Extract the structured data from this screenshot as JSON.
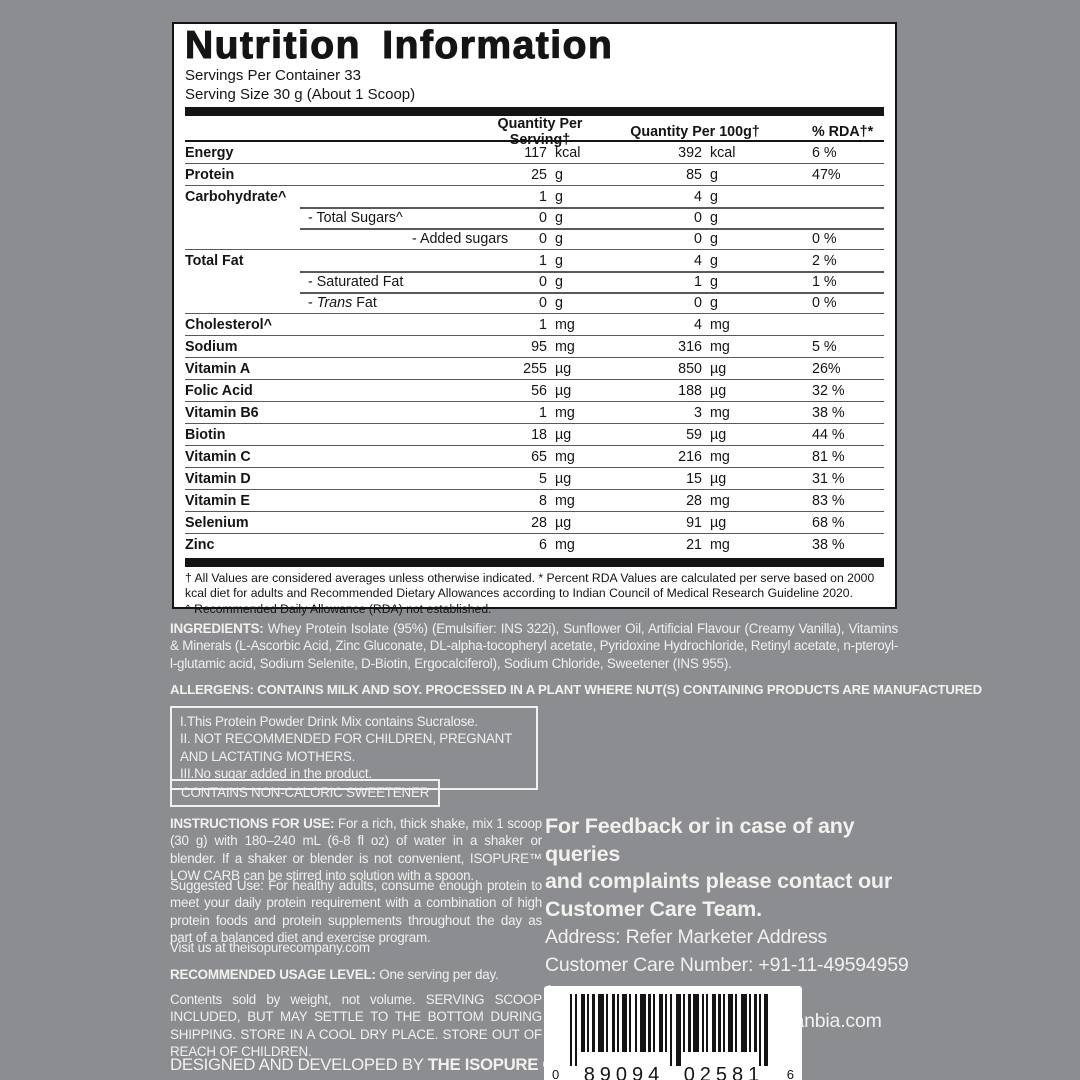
{
  "panel": {
    "title": "Nutrition Information",
    "servings_line1": "Servings Per Container 33",
    "servings_line2": "Serving Size 30 g (About 1 Scoop)",
    "columns": {
      "serving": "Quantity Per Serving†",
      "per100": "Quantity Per 100g†",
      "rda": "% RDA†*"
    },
    "rows": [
      {
        "label": "Energy",
        "bold": true,
        "indent": 0,
        "sep": "none",
        "sn": "117",
        "su": "kcal",
        "hn": "392",
        "hu": "kcal",
        "rda": "6 %"
      },
      {
        "label": "Protein",
        "bold": true,
        "indent": 0,
        "sep": "full",
        "sn": "25",
        "su": "g",
        "hn": "85",
        "hu": "g",
        "rda": "47%"
      },
      {
        "label": "Carbohydrate^",
        "bold": true,
        "indent": 0,
        "sep": "full",
        "sn": "1",
        "su": "g",
        "hn": "4",
        "hu": "g",
        "rda": ""
      },
      {
        "label": "- Total Sugars^",
        "bold": false,
        "indent": 1,
        "sep": "partial",
        "sn": "0",
        "su": "g",
        "hn": "0",
        "hu": "g",
        "rda": ""
      },
      {
        "label": "- Added sugars",
        "bold": false,
        "indent": 2,
        "sep": "partial",
        "sn": "0",
        "su": "g",
        "hn": "0",
        "hu": "g",
        "rda": "0 %"
      },
      {
        "label": "Total Fat",
        "bold": true,
        "indent": 0,
        "sep": "full",
        "sn": "1",
        "su": "g",
        "hn": "4",
        "hu": "g",
        "rda": "2 %"
      },
      {
        "label": "- Saturated Fat",
        "bold": false,
        "indent": 1,
        "sep": "partial",
        "sn": "0",
        "su": "g",
        "hn": "1",
        "hu": "g",
        "rda": "1 %"
      },
      {
        "label": "- Trans Fat",
        "italic": "Trans",
        "bold": false,
        "indent": 1,
        "sep": "partial",
        "sn": "0",
        "su": "g",
        "hn": "0",
        "hu": "g",
        "rda": "0 %"
      },
      {
        "label": "Cholesterol^",
        "bold": true,
        "indent": 0,
        "sep": "full",
        "sn": "1",
        "su": "mg",
        "hn": "4",
        "hu": "mg",
        "rda": ""
      },
      {
        "label": "Sodium",
        "bold": true,
        "indent": 0,
        "sep": "full",
        "sn": "95",
        "su": "mg",
        "hn": "316",
        "hu": "mg",
        "rda": "5 %"
      },
      {
        "label": "Vitamin A",
        "bold": true,
        "indent": 0,
        "sep": "full",
        "sn": "255",
        "su": "µg",
        "hn": "850",
        "hu": "µg",
        "rda": "26%"
      },
      {
        "label": "Folic Acid",
        "bold": true,
        "indent": 0,
        "sep": "full",
        "sn": "56",
        "su": "µg",
        "hn": "188",
        "hu": "µg",
        "rda": "32 %"
      },
      {
        "label": "Vitamin B6",
        "bold": true,
        "indent": 0,
        "sep": "full",
        "sn": "1",
        "su": "mg",
        "hn": "3",
        "hu": "mg",
        "rda": "38 %"
      },
      {
        "label": "Biotin",
        "bold": true,
        "indent": 0,
        "sep": "full",
        "sn": "18",
        "su": "µg",
        "hn": "59",
        "hu": "µg",
        "rda": "44 %"
      },
      {
        "label": "Vitamin C",
        "bold": true,
        "indent": 0,
        "sep": "full",
        "sn": "65",
        "su": "mg",
        "hn": "216",
        "hu": "mg",
        "rda": "81 %"
      },
      {
        "label": "Vitamin D",
        "bold": true,
        "indent": 0,
        "sep": "full",
        "sn": "5",
        "su": "µg",
        "hn": "15",
        "hu": "µg",
        "rda": "31 %"
      },
      {
        "label": "Vitamin E",
        "bold": true,
        "indent": 0,
        "sep": "full",
        "sn": "8",
        "su": "mg",
        "hn": "28",
        "hu": "mg",
        "rda": "83 %"
      },
      {
        "label": "Selenium",
        "bold": true,
        "indent": 0,
        "sep": "full",
        "sn": "28",
        "su": "µg",
        "hn": "91",
        "hu": "µg",
        "rda": "68 %"
      },
      {
        "label": "Zinc",
        "bold": true,
        "indent": 0,
        "sep": "full",
        "sn": "6",
        "su": "mg",
        "hn": "21",
        "hu": "mg",
        "rda": "38 %"
      }
    ],
    "footnote1": "† All Values are considered averages unless otherwise indicated.  * Percent RDA Values are calculated per serve based on 2000 kcal diet for adults and Recommended Dietary Allowances according to Indian Council of Medical Research Guideline 2020.",
    "footnote2": "^ Recommended Daily Allowance (RDA) not established."
  },
  "ingredients": {
    "label": "INGREDIENTS:",
    "text": " Whey Protein Isolate (95%) (Emulsifier: INS 322i), Sunflower Oil, Artificial Flavour (Creamy Vanilla), Vitamins & Minerals (L-Ascorbic Acid, Zinc Gluconate, DL-alpha-tocopheryl acetate, Pyridoxine Hydrochloride, Retinyl acetate, n-pteroyl-l-glutamic acid, Sodium Selenite, D-Biotin, Ergocalciferol), Sodium Chloride, Sweetener (INS 955)."
  },
  "allergens": "ALLERGENS: CONTAINS MILK AND SOY. PROCESSED IN A PLANT WHERE NUT(S) CONTAINING PRODUCTS ARE MANUFACTURED",
  "notes_box": [
    "I.This Protein Powder Drink Mix contains Sucralose.",
    "II. NOT RECOMMENDED FOR CHILDREN, PREGNANT AND LACTATING MOTHERS.",
    "III.No sugar added in the product."
  ],
  "sweetener_box": "CONTAINS NON-CALORIC SWEETENER",
  "instructions": {
    "label": "INSTRUCTIONS FOR USE:",
    "text": " For a rich, thick shake, mix 1 scoop (30 g) with 180–240 mL (6-8 fl oz) of water in a shaker or blender. If a shaker or blender is not convenient, ISOPURE™ LOW CARB can be stirred into solution with a spoon."
  },
  "suggested_use": "Suggested Use: For healthy adults, consume enough protein to meet your daily protein requirement with a combination of high protein foods and protein supplements throughout the day as part of a balanced diet and exercise program.",
  "visit": "Visit us at theisopurecompany.com",
  "usage_level": {
    "label": "RECOMMENDED USAGE LEVEL:",
    "text": " One serving per day."
  },
  "storage": "Contents sold by weight, not volume. SERVING SCOOP INCLUDED, BUT MAY SETTLE TO THE BOTTOM DURING SHIPPING.  STORE IN A COOL DRY PLACE. STORE OUT OF REACH OF CHILDREN.",
  "designed": {
    "prefix": "DESIGNED AND DEVELOPED BY ",
    "bold": "THE ISOPURE COMPANY,"
  },
  "contact": {
    "heading": "For Feedback or in case of any queries\nand complaints please contact our\nCustomer Care Team.",
    "address": "Address: Refer Marketer Address",
    "phone": "Customer Care Number: +91-11-49594959 /",
    "email": "Email: indiacustomercare@glanbia.com"
  },
  "barcode": {
    "left_digit": "0",
    "group1": "89094",
    "group2": "02581",
    "right_digit": "6"
  },
  "colors": {
    "background": "#8b8d91",
    "panel_bg": "#ffffff",
    "panel_text": "#141414",
    "light_text": "#f2f1ee"
  }
}
